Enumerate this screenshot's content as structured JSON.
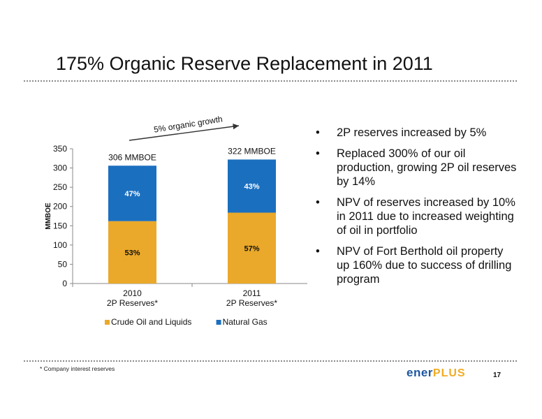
{
  "slide": {
    "title": "175% Organic Reserve Replacement in 2011",
    "footnote": "* Company interest reserves",
    "page_number": "17",
    "logo": {
      "part1": "ener",
      "part2": "PLUS"
    }
  },
  "bullets": [
    "2P reserves increased by 5%",
    "Replaced 300% of our oil production, growing 2P oil reserves by 14%",
    "NPV of reserves increased by 10% in 2011 due to increased weighting of oil in portfolio",
    "NPV of Fort Berthold oil property up 160% due to success of drilling program"
  ],
  "chart_data": {
    "type": "bar",
    "stacked": true,
    "categories": [
      [
        "2010",
        "2P Reserves*"
      ],
      [
        "2011",
        "2P Reserves*"
      ]
    ],
    "series": [
      {
        "name": "Crude Oil and Liquids",
        "color": "#eaa92a",
        "values": [
          162,
          184
        ],
        "labels": [
          "53%",
          "57%"
        ]
      },
      {
        "name": "Natural Gas",
        "color": "#1b6fbf",
        "values": [
          144,
          138
        ],
        "labels": [
          "47%",
          "43%"
        ]
      }
    ],
    "totals": [
      "306 MMBOE",
      "322 MMBOE"
    ],
    "ylabel": "MMBOE",
    "ylim": [
      0,
      350
    ],
    "yticks": [
      0,
      50,
      100,
      150,
      200,
      250,
      300,
      350
    ],
    "grid": false,
    "legend_position": "bottom",
    "annotation": "5% organic growth"
  }
}
